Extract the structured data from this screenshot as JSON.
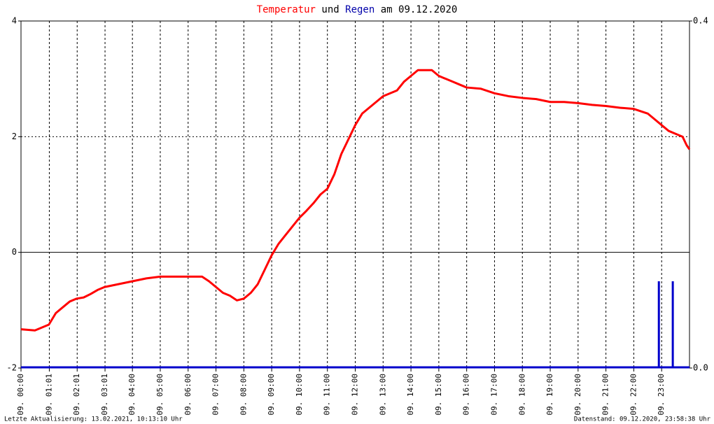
{
  "chart_data": {
    "type": "line",
    "title": {
      "connector": "und",
      "date": "am 09.12.2020"
    },
    "footer_left": "Letzte Aktualisierung: 13.02.2021, 10:13:10 Uhr",
    "footer_right": "Datenstand: 09.12.2020, 23:58:38 Uhr",
    "xlim": [
      0,
      24
    ],
    "xticks": [
      {
        "value": 0,
        "label": "09. 00:00"
      },
      {
        "value": 1.0167,
        "label": "09. 01:01"
      },
      {
        "value": 2.0167,
        "label": "09. 02:01"
      },
      {
        "value": 3.0167,
        "label": "09. 03:01"
      },
      {
        "value": 4,
        "label": "09. 04:00"
      },
      {
        "value": 5,
        "label": "09. 05:00"
      },
      {
        "value": 6,
        "label": "09. 06:00"
      },
      {
        "value": 7,
        "label": "09. 07:00"
      },
      {
        "value": 8,
        "label": "09. 08:00"
      },
      {
        "value": 9,
        "label": "09. 09:00"
      },
      {
        "value": 10,
        "label": "09. 10:00"
      },
      {
        "value": 11,
        "label": "09. 11:00"
      },
      {
        "value": 12,
        "label": "09. 12:00"
      },
      {
        "value": 13,
        "label": "09. 13:00"
      },
      {
        "value": 14,
        "label": "09. 14:00"
      },
      {
        "value": 15,
        "label": "09. 15:00"
      },
      {
        "value": 16,
        "label": "09. 16:00"
      },
      {
        "value": 17,
        "label": "09. 17:00"
      },
      {
        "value": 18,
        "label": "09. 18:00"
      },
      {
        "value": 19,
        "label": "09. 19:00"
      },
      {
        "value": 20,
        "label": "09. 20:00"
      },
      {
        "value": 21,
        "label": "09. 21:00"
      },
      {
        "value": 22,
        "label": "09. 22:00"
      },
      {
        "value": 23,
        "label": "09. 23:00"
      }
    ],
    "ylim": [
      -2,
      4
    ],
    "yticks": [
      -2,
      0,
      2,
      4
    ],
    "y2lim": [
      0,
      0.4
    ],
    "y2ticks": [
      {
        "value": 0,
        "label": "0.0"
      },
      0.4
    ],
    "series": [
      {
        "name": "Temperatur",
        "color": "#ff0000",
        "x": [
          0,
          0.5,
          0.9,
          1,
          1.25,
          1.5,
          1.75,
          2,
          2.25,
          2.5,
          2.75,
          3,
          3.5,
          4,
          4.5,
          5,
          5.5,
          6,
          6.5,
          6.75,
          7,
          7.25,
          7.5,
          7.75,
          8,
          8.25,
          8.5,
          8.75,
          9,
          9.25,
          9.5,
          9.75,
          10,
          10.25,
          10.5,
          10.75,
          11,
          11.25,
          11.5,
          11.75,
          12,
          12.25,
          12.5,
          12.75,
          13,
          13.25,
          13.5,
          13.75,
          14,
          14.25,
          14.5,
          14.75,
          15,
          15.25,
          15.5,
          15.75,
          16,
          16.5,
          17,
          17.5,
          18,
          18.5,
          19,
          19.5,
          20,
          20.5,
          21,
          21.5,
          22,
          22.5,
          22.75,
          23,
          23.25,
          23.5,
          23.75,
          23.9,
          24
        ],
        "values": [
          -1.33,
          -1.35,
          -1.27,
          -1.25,
          -1.05,
          -0.95,
          -0.85,
          -0.8,
          -0.78,
          -0.72,
          -0.65,
          -0.6,
          -0.55,
          -0.5,
          -0.45,
          -0.42,
          -0.42,
          -0.42,
          -0.42,
          -0.5,
          -0.6,
          -0.7,
          -0.75,
          -0.83,
          -0.8,
          -0.7,
          -0.55,
          -0.3,
          -0.05,
          0.15,
          0.3,
          0.45,
          0.6,
          0.72,
          0.85,
          1.0,
          1.1,
          1.35,
          1.7,
          1.95,
          2.2,
          2.4,
          2.5,
          2.6,
          2.7,
          2.75,
          2.8,
          2.95,
          3.05,
          3.15,
          3.15,
          3.15,
          3.05,
          3.0,
          2.95,
          2.9,
          2.85,
          2.83,
          2.75,
          2.7,
          2.67,
          2.65,
          2.6,
          2.6,
          2.58,
          2.55,
          2.53,
          2.5,
          2.48,
          2.4,
          2.3,
          2.2,
          2.1,
          2.05,
          2.0,
          1.85,
          1.78
        ]
      },
      {
        "name": "Regen",
        "color": "#0000cc",
        "axis": "y2",
        "x": [
          22.9,
          23.4
        ],
        "values": [
          0.1,
          0.1
        ]
      }
    ]
  }
}
